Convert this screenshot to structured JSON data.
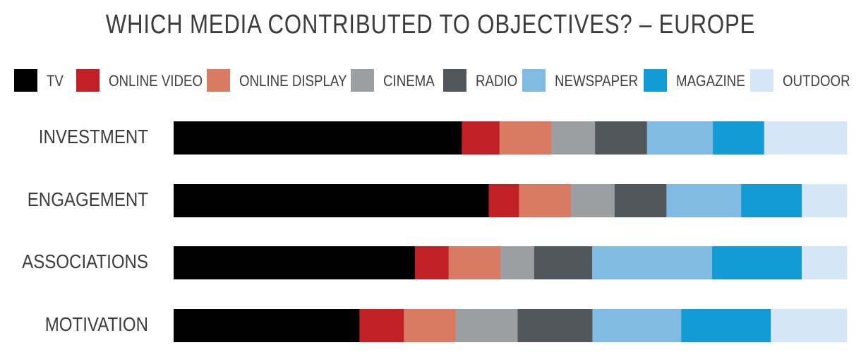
{
  "chart_data": {
    "type": "bar",
    "orientation": "horizontal",
    "stacked": true,
    "title": "WHICH MEDIA CONTRIBUTED TO OBJECTIVES? – EUROPE",
    "xlabel": "",
    "ylabel": "",
    "xlim": [
      0,
      100
    ],
    "grid": false,
    "legend_position": "top",
    "categories": [
      "INVESTMENT",
      "ENGAGEMENT",
      "ASSOCIATIONS",
      "MOTIVATION"
    ],
    "series": [
      {
        "name": "TV",
        "color": "#000000",
        "values": [
          42.8,
          46.8,
          35.8,
          27.6
        ]
      },
      {
        "name": "ONLINE VIDEO",
        "color": "#c12026",
        "values": [
          5.6,
          4.5,
          5.0,
          6.6
        ]
      },
      {
        "name": "ONLINE DISPLAY",
        "color": "#d97a62",
        "values": [
          7.7,
          7.7,
          7.7,
          7.7
        ]
      },
      {
        "name": "CINEMA",
        "color": "#9c9fa1",
        "values": [
          6.5,
          6.5,
          5.0,
          9.2
        ]
      },
      {
        "name": "RADIO",
        "color": "#51575b",
        "values": [
          7.7,
          7.7,
          8.6,
          11.1
        ]
      },
      {
        "name": "NEWSPAPER",
        "color": "#7fbbe3",
        "values": [
          9.8,
          11.1,
          17.8,
          13.2
        ]
      },
      {
        "name": "MAGAZINE",
        "color": "#129bd4",
        "values": [
          7.6,
          9.0,
          13.3,
          13.3
        ]
      },
      {
        "name": "OUTDOOR",
        "color": "#d4e6f7",
        "values": [
          12.3,
          6.7,
          6.7,
          11.3
        ]
      }
    ]
  }
}
